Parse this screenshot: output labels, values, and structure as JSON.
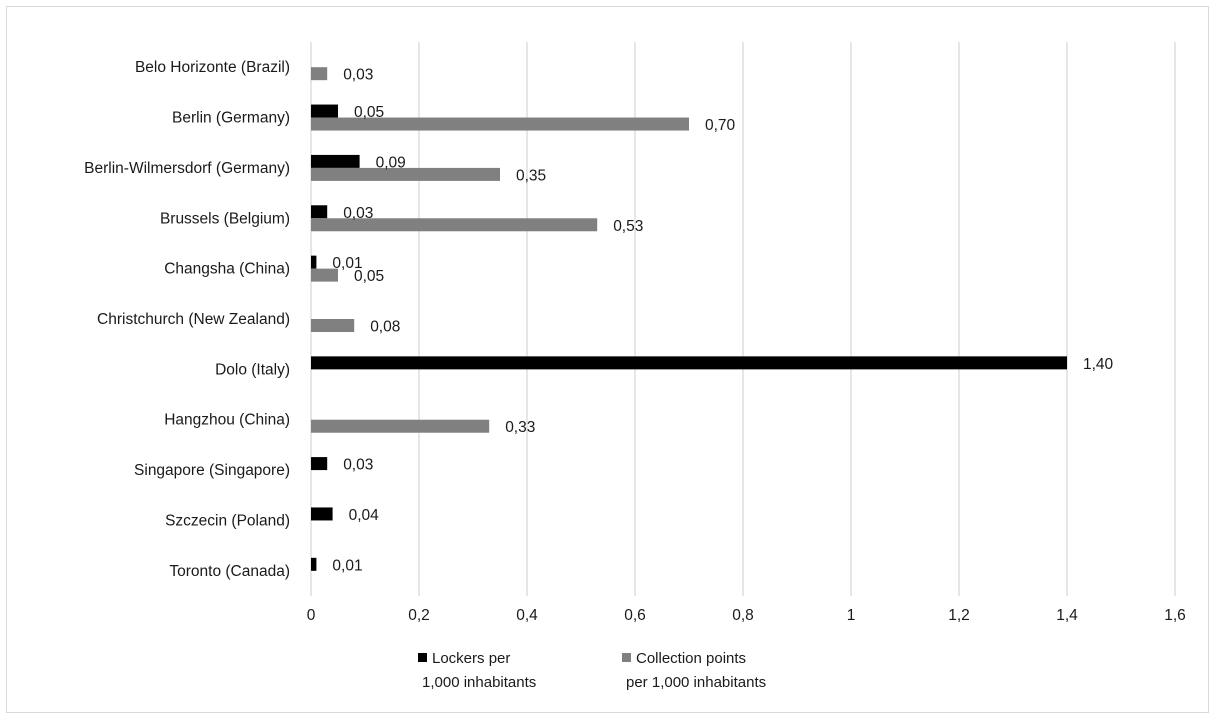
{
  "chart_data": {
    "type": "bar",
    "orientation": "horizontal",
    "categories": [
      "Belo Horizonte (Brazil)",
      "Berlin (Germany)",
      "Berlin-Wilmersdorf (Germany)",
      "Brussels (Belgium)",
      "Changsha (China)",
      "Christchurch (New Zealand)",
      "Dolo (Italy)",
      "Hangzhou (China)",
      "Singapore (Singapore)",
      "Szczecin (Poland)",
      "Toronto (Canada)"
    ],
    "series": [
      {
        "name": "Lockers per 1,000 inhabitants",
        "name_lines": [
          "Lockers per",
          "1,000 inhabitants"
        ],
        "color": "#000000",
        "values": [
          null,
          0.05,
          0.09,
          0.03,
          0.01,
          null,
          1.4,
          null,
          0.03,
          0.04,
          0.01
        ],
        "labels": [
          "",
          "0,05",
          "0,09",
          "0,03",
          "0,01",
          "",
          "1,40",
          "",
          "0,03",
          "0,04",
          "0,01"
        ]
      },
      {
        "name": "Collection points per 1,000 inhabitants",
        "name_lines": [
          "Collection points",
          "per 1,000 inhabitants"
        ],
        "color": "#808080",
        "values": [
          0.03,
          0.7,
          0.35,
          0.53,
          0.05,
          0.08,
          null,
          0.33,
          null,
          null,
          null
        ],
        "labels": [
          "0,03",
          "0,70",
          "0,35",
          "0,53",
          "0,05",
          "0,08",
          "",
          "0,33",
          "",
          "",
          ""
        ]
      }
    ],
    "x_ticks": [
      0,
      0.2,
      0.4,
      0.6,
      0.8,
      1,
      1.2,
      1.4,
      1.6
    ],
    "x_tick_labels": [
      "0",
      "0,2",
      "0,4",
      "0,6",
      "0,8",
      "1",
      "1,2",
      "1,4",
      "1,6"
    ],
    "xlim": [
      0,
      1.6
    ],
    "grid": "vertical",
    "legend_position": "bottom"
  }
}
